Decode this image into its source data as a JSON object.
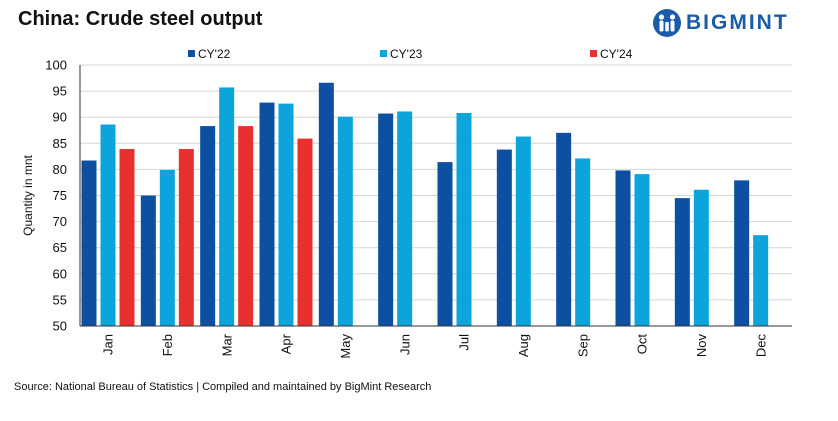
{
  "colors": {
    "cy22": "#0d4fa0",
    "cy23": "#0ba5dc",
    "cy24": "#e8302e",
    "brand": "#1a5ca8"
  },
  "header": {
    "title": "China: Crude steel output"
  },
  "logo": {
    "icon": "bigmint-logo-icon",
    "text": "BIGMINT"
  },
  "footer": {
    "source": "Source: National Bureau of Statistics | Compiled and maintained by BigMint Research"
  },
  "chart_data": {
    "type": "bar",
    "title": "China: Crude steel output",
    "xlabel": "",
    "ylabel": "Quantity in mnt",
    "ylim": [
      50,
      100
    ],
    "yticks": [
      50,
      55,
      60,
      65,
      70,
      75,
      80,
      85,
      90,
      95,
      100
    ],
    "categories": [
      "Jan",
      "Feb",
      "Mar",
      "Apr",
      "May",
      "Jun",
      "Jul",
      "Aug",
      "Sep",
      "Oct",
      "Nov",
      "Dec"
    ],
    "legend_position": "top",
    "grid": true,
    "series": [
      {
        "name": "CY'22",
        "color": "#0d4fa0",
        "values": [
          81.7,
          75.0,
          88.3,
          92.8,
          96.6,
          90.7,
          81.4,
          83.8,
          87.0,
          79.8,
          74.5,
          77.9
        ]
      },
      {
        "name": "CY'23",
        "color": "#0ba5dc",
        "values": [
          88.6,
          79.9,
          95.7,
          92.6,
          90.1,
          91.1,
          90.8,
          86.3,
          82.1,
          79.1,
          76.1,
          67.4
        ]
      },
      {
        "name": "CY'24",
        "color": "#e8302e",
        "values": [
          83.9,
          83.9,
          88.3,
          85.9,
          null,
          null,
          null,
          null,
          null,
          null,
          null,
          null
        ]
      }
    ]
  }
}
